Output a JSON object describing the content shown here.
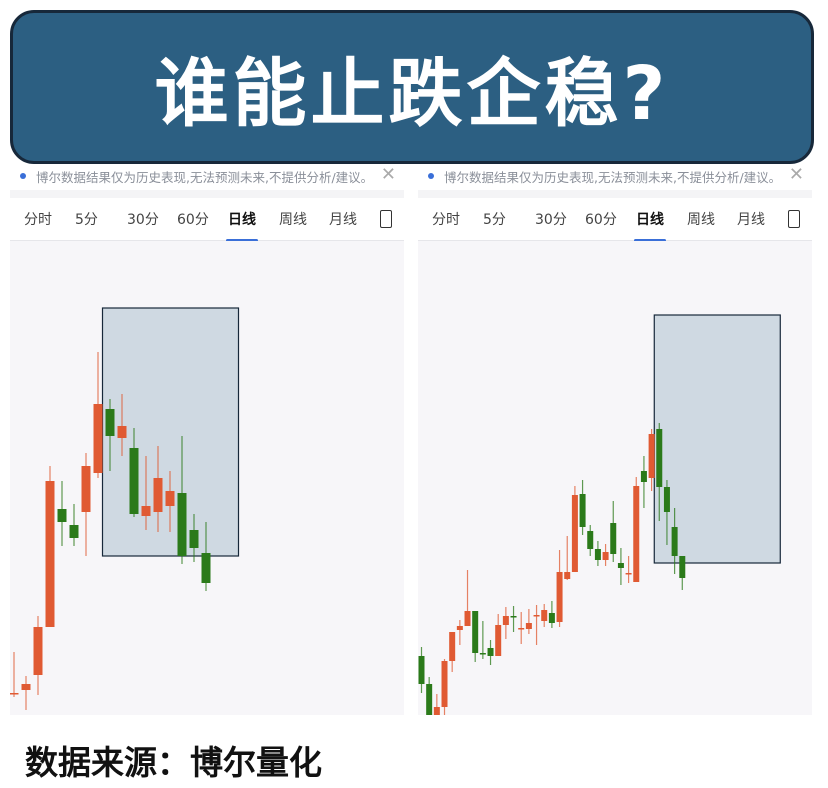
{
  "title": "谁能止跌企稳?",
  "footer": "数据来源：博尔量化",
  "panels": [
    {
      "disclaimer": "博尔数据结果仅为历史表现,无法预测未来,不提供分析/建议。",
      "close_icon": "close-icon",
      "tabs": [
        "分时",
        "5分",
        "30分",
        "60分",
        "日线",
        "周线",
        "月线"
      ],
      "active_tab": "日线"
    },
    {
      "disclaimer": "博尔数据结果仅为历史表现,无法预测未来,不提供分析/建议。",
      "close_icon": "close-icon",
      "tabs": [
        "分时",
        "5分",
        "30分",
        "60分",
        "日线",
        "周线",
        "月线"
      ],
      "active_tab": "日线"
    }
  ],
  "colors": {
    "up": "#e05a33",
    "down": "#2b7a1a",
    "banner": "#2c5f82",
    "highlight": "#cfd9e2",
    "accent": "#3a6fd8"
  },
  "chart_data": [
    {
      "type": "candlestick",
      "note_units": "relative price (no axis shown)",
      "highlight_range": [
        9,
        17
      ],
      "ohlc": [
        [
          106,
          106,
          147,
          102
        ],
        [
          109,
          115,
          123,
          89
        ],
        [
          124,
          172,
          183,
          104
        ],
        [
          172,
          318,
          333,
          172
        ],
        [
          290,
          277,
          318,
          253
        ],
        [
          274,
          261,
          295,
          253
        ],
        [
          287,
          333,
          346,
          243
        ],
        [
          326,
          395,
          447,
          321
        ],
        [
          390,
          363,
          400,
          328
        ],
        [
          361,
          373,
          405,
          343
        ],
        [
          351,
          285,
          371,
          282
        ],
        [
          283,
          293,
          343,
          269
        ],
        [
          287,
          321,
          353,
          267
        ],
        [
          293,
          308,
          328,
          267
        ],
        [
          306,
          243,
          363,
          235
        ],
        [
          269,
          251,
          285,
          237
        ],
        [
          246,
          216,
          277,
          208
        ]
      ]
    },
    {
      "type": "candlestick",
      "note_units": "relative price (no axis shown)",
      "highlight_range": [
        32,
        35
      ],
      "ohlc": [
        [
          143,
          115,
          152,
          106
        ],
        [
          115,
          80,
          122,
          75
        ],
        [
          82,
          92,
          105,
          50
        ],
        [
          92,
          138,
          140,
          83
        ],
        [
          138,
          167,
          167,
          127
        ],
        [
          169,
          173,
          179,
          154
        ],
        [
          173,
          188,
          229,
          173
        ],
        [
          188,
          146,
          188,
          137
        ],
        [
          146,
          145,
          178,
          140
        ],
        [
          151,
          143,
          159,
          134
        ],
        [
          143,
          174,
          185,
          143
        ],
        [
          174,
          183,
          192,
          160
        ],
        [
          183,
          182,
          193,
          167
        ],
        [
          170,
          171,
          187,
          155
        ],
        [
          170,
          176,
          190,
          165
        ],
        [
          183,
          184,
          194,
          154
        ],
        [
          178,
          189,
          195,
          172
        ],
        [
          186,
          176,
          198,
          171
        ],
        [
          177,
          227,
          249,
          172
        ],
        [
          220,
          227,
          263,
          219
        ],
        [
          227,
          304,
          313,
          227
        ],
        [
          305,
          272,
          319,
          264
        ],
        [
          268,
          250,
          274,
          243
        ],
        [
          250,
          239,
          258,
          233
        ],
        [
          239,
          247,
          255,
          233
        ],
        [
          276,
          245,
          298,
          237
        ],
        [
          236,
          231,
          251,
          214
        ],
        [
          225,
          226,
          243,
          216
        ],
        [
          217,
          313,
          322,
          217
        ],
        [
          328,
          317,
          343,
          291
        ],
        [
          321,
          365,
          370,
          308
        ],
        [
          370,
          312,
          376,
          278
        ],
        [
          312,
          287,
          319,
          254
        ],
        [
          272,
          243,
          291,
          225
        ],
        [
          243,
          221,
          243,
          209
        ]
      ]
    }
  ]
}
